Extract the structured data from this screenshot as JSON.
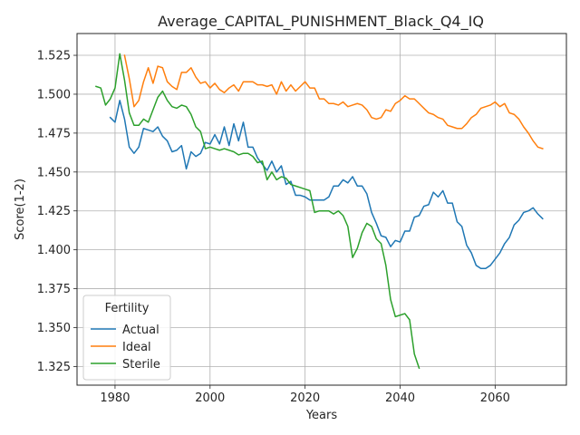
{
  "chart_data": {
    "type": "line",
    "title": "Average_CAPITAL_PUNISHMENT_Black_Q4_IQ",
    "xlabel": "Years",
    "ylabel": "Score(1-2)",
    "xlim": [
      1972,
      2075
    ],
    "ylim": [
      1.313,
      1.539
    ],
    "xticks": [
      1980,
      2000,
      2020,
      2040,
      2060
    ],
    "yticks": [
      1.325,
      1.35,
      1.375,
      1.4,
      1.425,
      1.45,
      1.475,
      1.5,
      1.525
    ],
    "ytick_labels": [
      "1.325",
      "1.350",
      "1.375",
      "1.400",
      "1.425",
      "1.450",
      "1.475",
      "1.500",
      "1.525"
    ],
    "grid": true,
    "legend": {
      "title": "Fertility",
      "position": "lower-left"
    },
    "series": [
      {
        "name": "Actual",
        "color": "#1f77b4",
        "x": [
          1979,
          1980,
          1981,
          1982,
          1983,
          1984,
          1985,
          1986,
          1987,
          1988,
          1989,
          1990,
          1991,
          1992,
          1993,
          1994,
          1995,
          1996,
          1997,
          1998,
          1999,
          2000,
          2001,
          2002,
          2003,
          2004,
          2005,
          2006,
          2007,
          2008,
          2009,
          2010,
          2011,
          2012,
          2013,
          2014,
          2015,
          2016,
          2017,
          2018,
          2019,
          2020,
          2021,
          2022,
          2023,
          2024,
          2025,
          2026,
          2027,
          2028,
          2029,
          2030,
          2031,
          2032,
          2033,
          2034,
          2035,
          2036,
          2037,
          2038,
          2039,
          2040,
          2041,
          2042,
          2043,
          2044,
          2045,
          2046,
          2047,
          2048,
          2049,
          2050,
          2051,
          2052,
          2053,
          2054,
          2055,
          2056,
          2057,
          2058,
          2059,
          2060,
          2061,
          2062,
          2063,
          2064,
          2065,
          2066,
          2067,
          2068,
          2069,
          2070
        ],
        "y": [
          1.485,
          1.482,
          1.496,
          1.484,
          1.466,
          1.462,
          1.466,
          1.478,
          1.477,
          1.476,
          1.479,
          1.473,
          1.47,
          1.463,
          1.464,
          1.467,
          1.452,
          1.463,
          1.46,
          1.462,
          1.469,
          1.468,
          1.474,
          1.468,
          1.479,
          1.467,
          1.481,
          1.47,
          1.482,
          1.466,
          1.466,
          1.459,
          1.455,
          1.451,
          1.457,
          1.45,
          1.454,
          1.442,
          1.444,
          1.435,
          1.435,
          1.434,
          1.432,
          1.432,
          1.432,
          1.432,
          1.434,
          1.441,
          1.441,
          1.445,
          1.443,
          1.447,
          1.441,
          1.441,
          1.436,
          1.424,
          1.417,
          1.409,
          1.408,
          1.402,
          1.406,
          1.405,
          1.412,
          1.412,
          1.421,
          1.422,
          1.428,
          1.429,
          1.437,
          1.434,
          1.438,
          1.43,
          1.43,
          1.418,
          1.415,
          1.403,
          1.398,
          1.39,
          1.388,
          1.388,
          1.39,
          1.394,
          1.398,
          1.404,
          1.408,
          1.416,
          1.419,
          1.424,
          1.425,
          1.427,
          1.423,
          1.42
        ]
      },
      {
        "name": "Ideal",
        "color": "#ff7f0e",
        "x": [
          1982,
          1983,
          1984,
          1985,
          1986,
          1987,
          1988,
          1989,
          1990,
          1991,
          1992,
          1993,
          1994,
          1995,
          1996,
          1997,
          1998,
          1999,
          2000,
          2001,
          2002,
          2003,
          2004,
          2005,
          2006,
          2007,
          2008,
          2009,
          2010,
          2011,
          2012,
          2013,
          2014,
          2015,
          2016,
          2017,
          2018,
          2019,
          2020,
          2021,
          2022,
          2023,
          2024,
          2025,
          2026,
          2027,
          2028,
          2029,
          2030,
          2031,
          2032,
          2033,
          2034,
          2035,
          2036,
          2037,
          2038,
          2039,
          2040,
          2041,
          2042,
          2043,
          2044,
          2045,
          2046,
          2047,
          2048,
          2049,
          2050,
          2051,
          2052,
          2053,
          2054,
          2055,
          2056,
          2057,
          2058,
          2059,
          2060,
          2061,
          2062,
          2063,
          2064,
          2065,
          2066,
          2067,
          2068,
          2069,
          2070
        ],
        "y": [
          1.525,
          1.51,
          1.492,
          1.496,
          1.508,
          1.517,
          1.507,
          1.518,
          1.517,
          1.508,
          1.505,
          1.503,
          1.514,
          1.514,
          1.517,
          1.511,
          1.507,
          1.508,
          1.504,
          1.507,
          1.503,
          1.501,
          1.504,
          1.506,
          1.502,
          1.508,
          1.508,
          1.508,
          1.506,
          1.506,
          1.505,
          1.506,
          1.5,
          1.508,
          1.502,
          1.506,
          1.502,
          1.505,
          1.508,
          1.504,
          1.504,
          1.497,
          1.497,
          1.494,
          1.494,
          1.493,
          1.495,
          1.492,
          1.493,
          1.494,
          1.493,
          1.49,
          1.485,
          1.484,
          1.485,
          1.49,
          1.489,
          1.494,
          1.496,
          1.499,
          1.497,
          1.497,
          1.494,
          1.491,
          1.488,
          1.487,
          1.485,
          1.484,
          1.48,
          1.479,
          1.478,
          1.478,
          1.481,
          1.485,
          1.487,
          1.491,
          1.492,
          1.493,
          1.495,
          1.492,
          1.494,
          1.488,
          1.487,
          1.484,
          1.479,
          1.475,
          1.47,
          1.466,
          1.465
        ]
      },
      {
        "name": "Sterile",
        "color": "#2ca02c",
        "x": [
          1976,
          1977,
          1978,
          1979,
          1980,
          1981,
          1982,
          1983,
          1984,
          1985,
          1986,
          1987,
          1988,
          1989,
          1990,
          1991,
          1992,
          1993,
          1994,
          1995,
          1996,
          1997,
          1998,
          1999,
          2000,
          2001,
          2002,
          2003,
          2004,
          2005,
          2006,
          2007,
          2008,
          2009,
          2010,
          2011,
          2012,
          2013,
          2014,
          2015,
          2016,
          2017,
          2018,
          2019,
          2020,
          2021,
          2022,
          2023,
          2024,
          2025,
          2026,
          2027,
          2028,
          2029,
          2030,
          2031,
          2032,
          2033,
          2034,
          2035,
          2036,
          2037,
          2038,
          2039,
          2040,
          2041,
          2042,
          2043,
          2044
        ],
        "y": [
          1.505,
          1.504,
          1.493,
          1.497,
          1.504,
          1.526,
          1.509,
          1.488,
          1.48,
          1.48,
          1.484,
          1.482,
          1.49,
          1.498,
          1.502,
          1.496,
          1.492,
          1.491,
          1.493,
          1.492,
          1.487,
          1.479,
          1.476,
          1.465,
          1.466,
          1.465,
          1.464,
          1.465,
          1.464,
          1.463,
          1.461,
          1.462,
          1.462,
          1.46,
          1.456,
          1.457,
          1.445,
          1.45,
          1.445,
          1.447,
          1.446,
          1.442,
          1.441,
          1.44,
          1.439,
          1.438,
          1.424,
          1.425,
          1.425,
          1.425,
          1.423,
          1.425,
          1.422,
          1.415,
          1.395,
          1.401,
          1.411,
          1.417,
          1.415,
          1.407,
          1.404,
          1.39,
          1.368,
          1.357,
          1.358,
          1.359,
          1.355,
          1.333,
          1.324
        ]
      }
    ]
  }
}
